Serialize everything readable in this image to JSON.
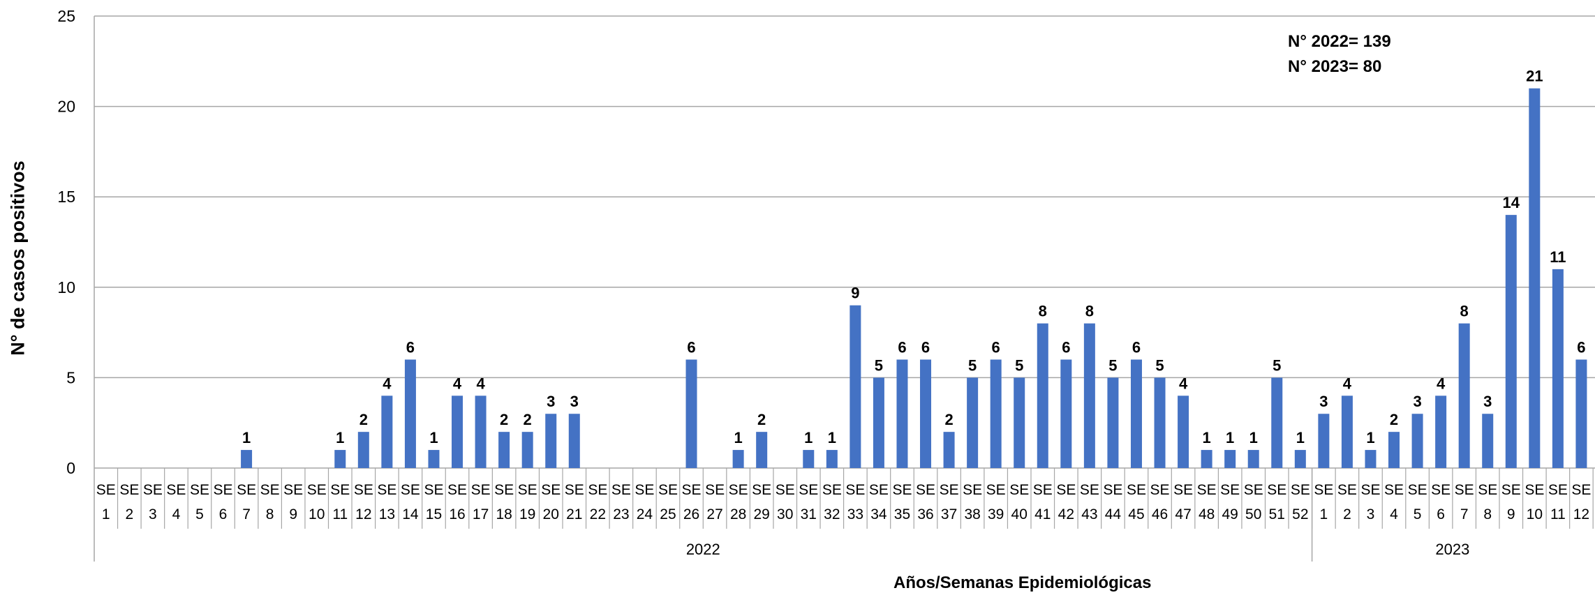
{
  "chart_data": {
    "type": "bar",
    "xlabel": "Años/Semanas Epidemiológicas",
    "ylabel": "N° de casos positivos",
    "ylim": [
      0,
      25
    ],
    "yticks": [
      0,
      5,
      10,
      15,
      20,
      25
    ],
    "grid": true,
    "annotations": [
      "N° 2022= 139",
      "N° 2023= 80"
    ],
    "groups": [
      {
        "label": "2022",
        "categories": [
          "SE 1",
          "SE 2",
          "SE 3",
          "SE 4",
          "SE 5",
          "SE 6",
          "SE 7",
          "SE 8",
          "SE 9",
          "SE 10",
          "SE 11",
          "SE 12",
          "SE 13",
          "SE 14",
          "SE 15",
          "SE 16",
          "SE 17",
          "SE 18",
          "SE 19",
          "SE 20",
          "SE 21",
          "SE 22",
          "SE 23",
          "SE 24",
          "SE 25",
          "SE 26",
          "SE 27",
          "SE 28",
          "SE 29",
          "SE 30",
          "SE 31",
          "SE 32",
          "SE 33",
          "SE 34",
          "SE 35",
          "SE 36",
          "SE 37",
          "SE 38",
          "SE 39",
          "SE 40",
          "SE 41",
          "SE 42",
          "SE 43",
          "SE 44",
          "SE 45",
          "SE 46",
          "SE 47",
          "SE 48",
          "SE 49",
          "SE 50",
          "SE 51",
          "SE 52"
        ],
        "values": [
          0,
          0,
          0,
          0,
          0,
          0,
          1,
          0,
          0,
          0,
          1,
          2,
          4,
          6,
          1,
          4,
          4,
          2,
          2,
          3,
          3,
          0,
          0,
          0,
          0,
          6,
          0,
          1,
          2,
          0,
          1,
          1,
          9,
          5,
          6,
          6,
          2,
          5,
          6,
          5,
          8,
          6,
          8,
          5,
          6,
          5,
          4,
          1,
          1,
          1,
          5,
          1
        ]
      },
      {
        "label": "2023",
        "categories": [
          "SE 1",
          "SE 2",
          "SE 3",
          "SE 4",
          "SE 5",
          "SE 6",
          "SE 7",
          "SE 8",
          "SE 9",
          "SE 10",
          "SE 11",
          "SE 12"
        ],
        "values": [
          3,
          4,
          1,
          2,
          3,
          4,
          8,
          3,
          14,
          21,
          11,
          6
        ]
      }
    ],
    "bar_color": "#4472C4"
  }
}
